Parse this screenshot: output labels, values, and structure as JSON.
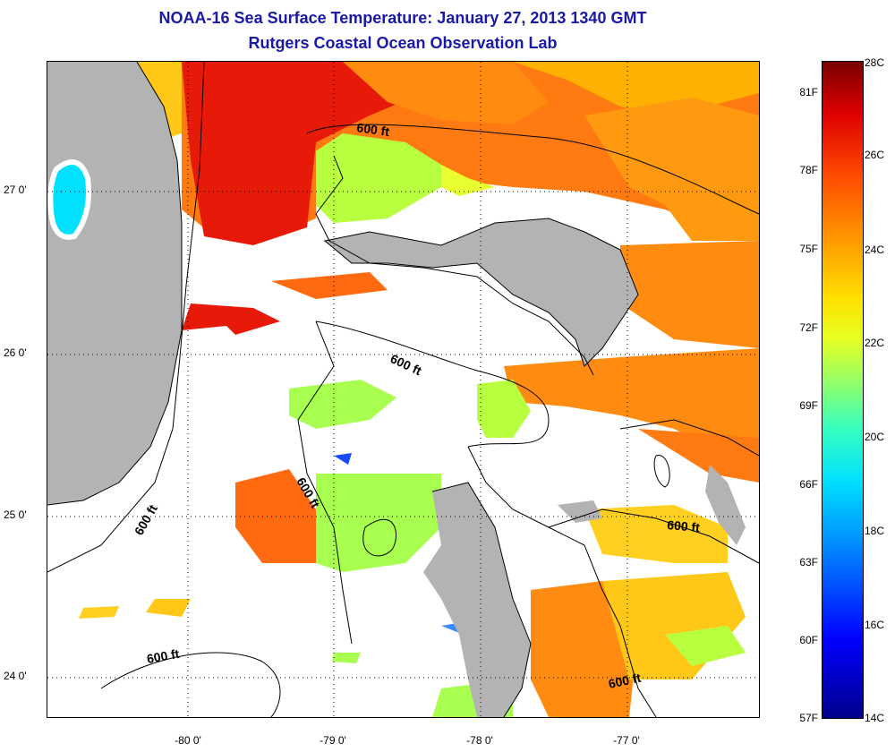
{
  "header": {
    "title_line1": "NOAA-16 Sea Surface Temperature:  January 27, 2013 1340 GMT",
    "title_line2": "Rutgers Coastal Ocean Observation Lab"
  },
  "map": {
    "latitude_labels": [
      "27 0'",
      "26 0'",
      "25 0'",
      "24 0'"
    ],
    "longitude_labels": [
      "-80 0'",
      "-79 0'",
      "-78 0'",
      "-77 0'"
    ],
    "contour_label": "600 ft",
    "land_color": "#b3b3b3",
    "cloud_color": "#ffffff"
  },
  "colorbar": {
    "fahrenheit_labels": [
      "81F",
      "78F",
      "75F",
      "72F",
      "69F",
      "66F",
      "63F",
      "60F",
      "57F"
    ],
    "celsius_labels": [
      "28C",
      "26C",
      "24C",
      "22C",
      "20C",
      "18C",
      "16C",
      "14C"
    ],
    "range_c": [
      14,
      28
    ]
  }
}
